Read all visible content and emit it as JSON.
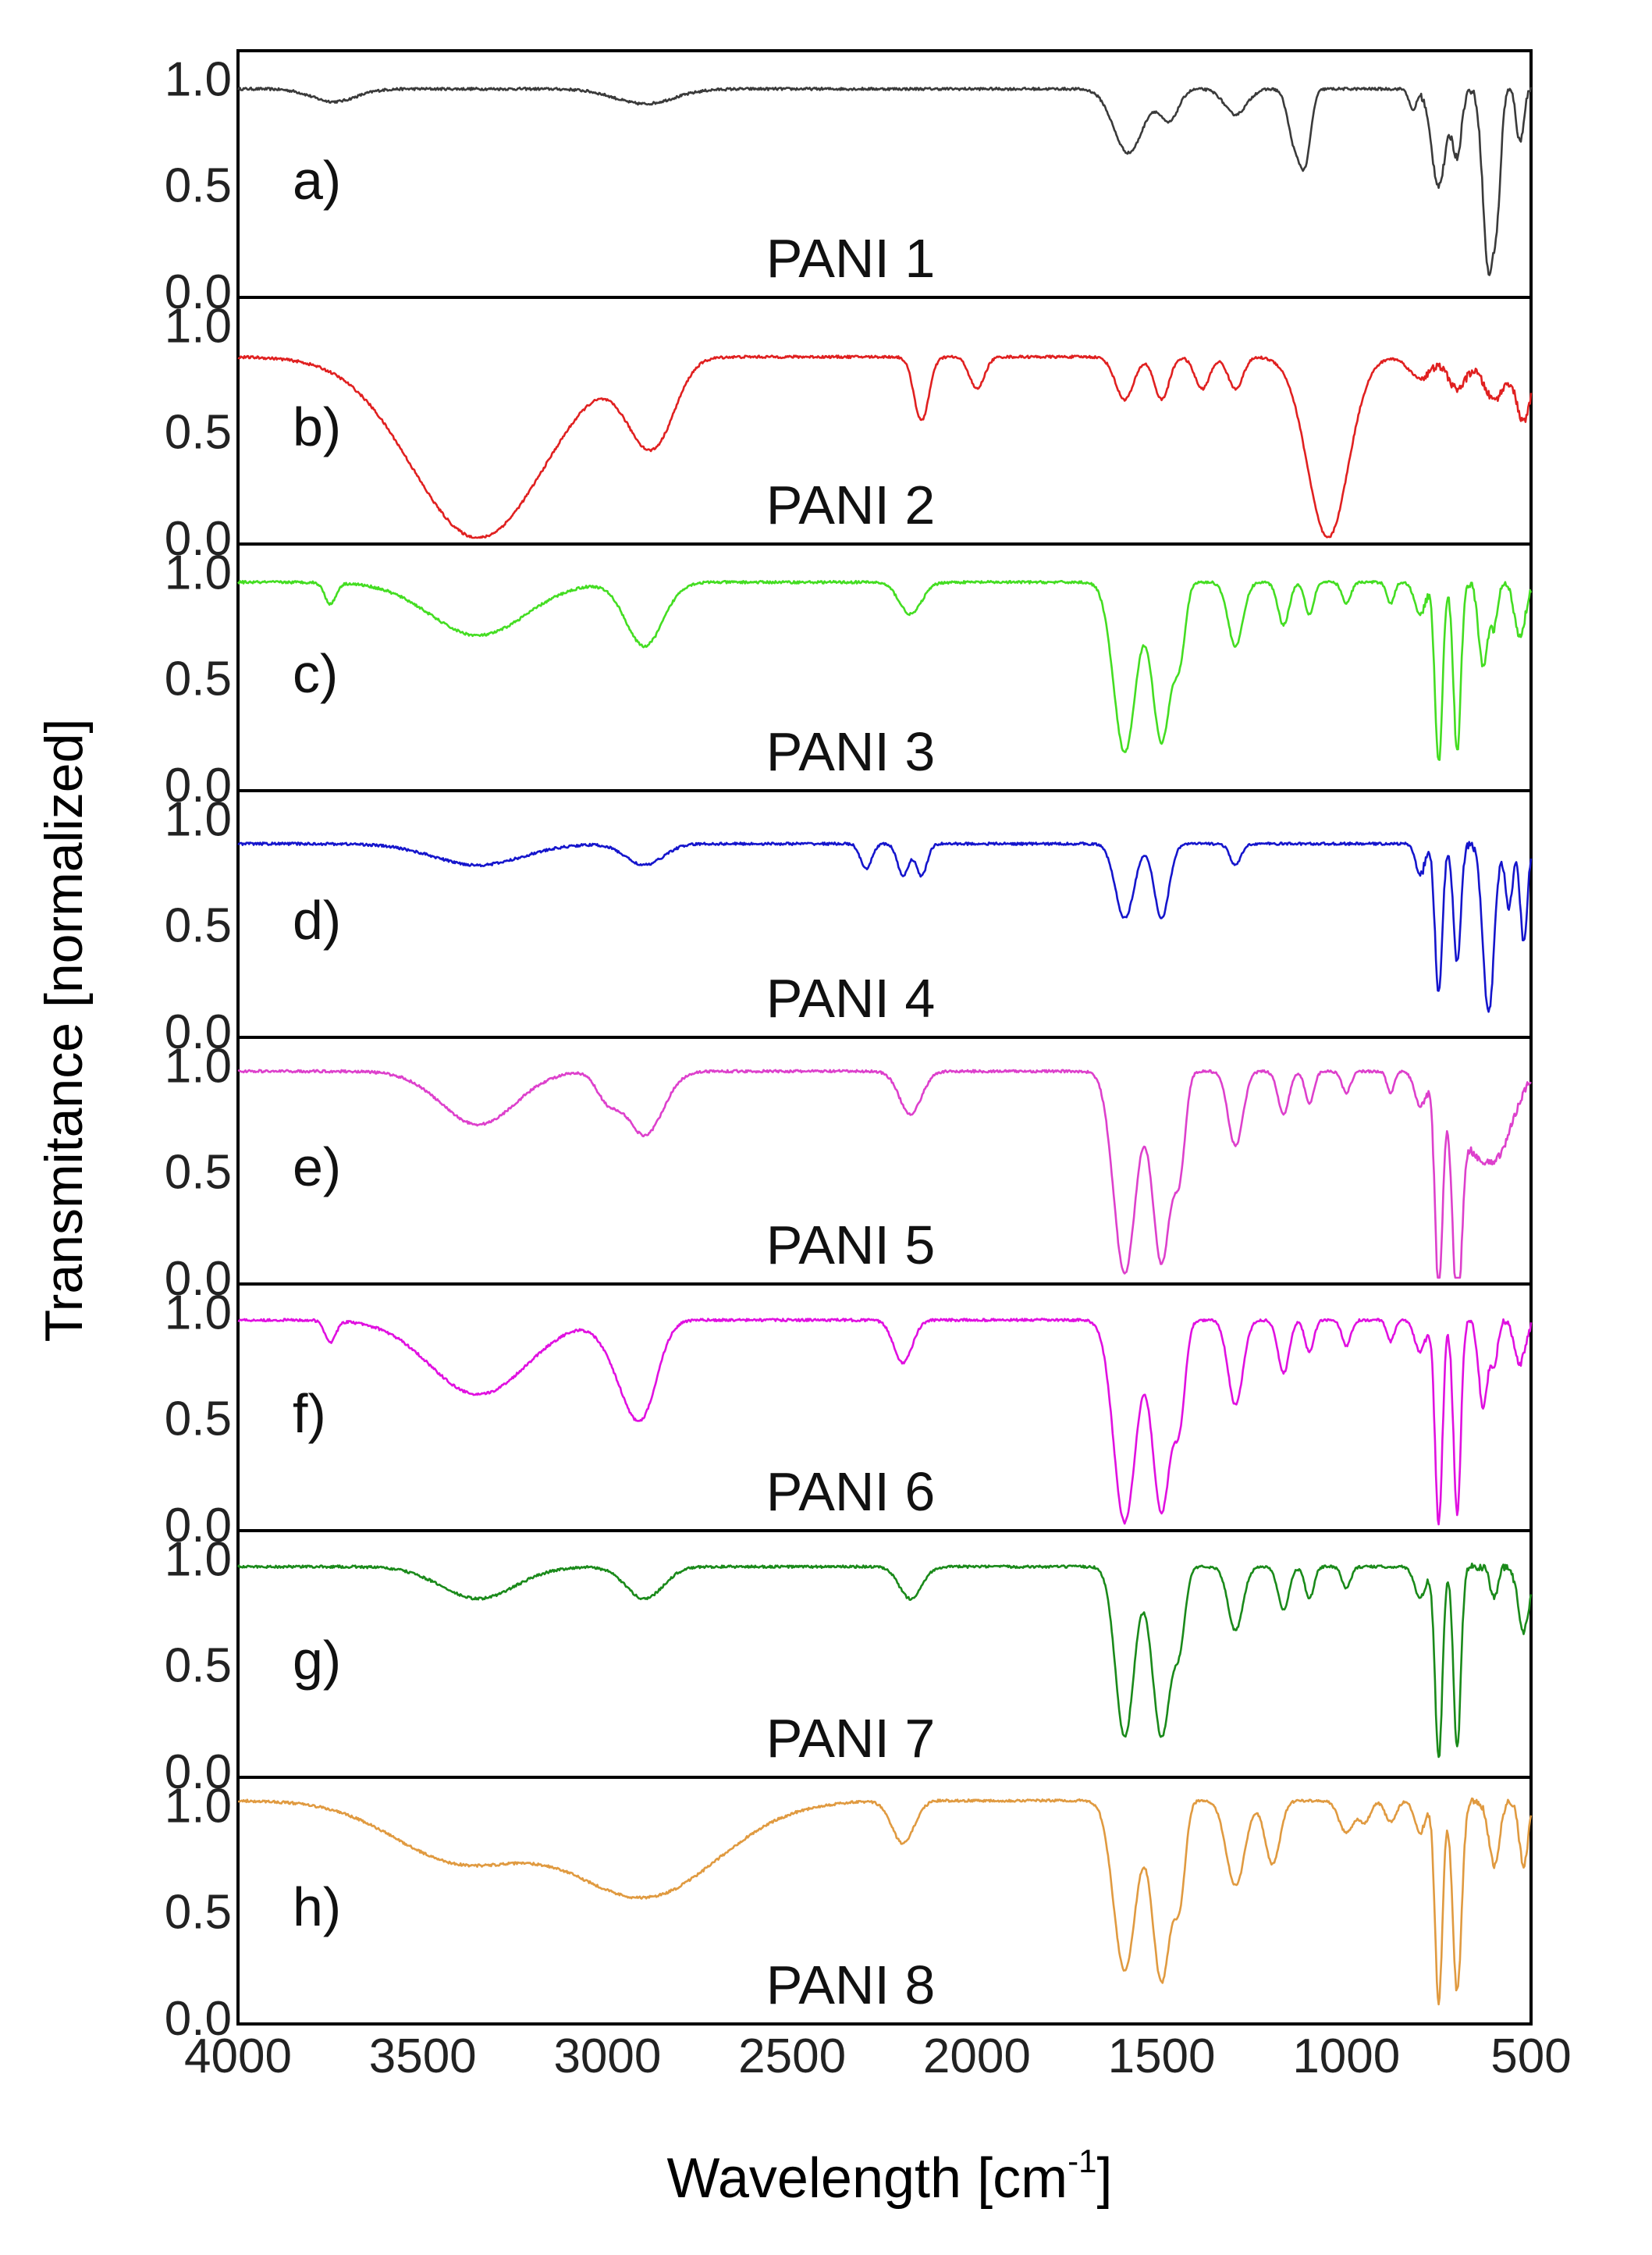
{
  "chart_data": {
    "type": "line",
    "xlabel_main": "Wavelength [cm",
    "xlabel_sup": "-1",
    "xlabel_close": "]",
    "ylabel": "Transmitance [normalized]",
    "xlim": [
      4000,
      500
    ],
    "ylim": [
      0.0,
      1.1
    ],
    "x_ticks": [
      {
        "value": 4000,
        "label": "4000"
      },
      {
        "value": 3500,
        "label": "3500"
      },
      {
        "value": 3000,
        "label": "3000"
      },
      {
        "value": 2500,
        "label": "2500"
      },
      {
        "value": 2000,
        "label": "2000"
      },
      {
        "value": 1500,
        "label": "1500"
      },
      {
        "value": 1000,
        "label": "1000"
      },
      {
        "value": 500,
        "label": "500"
      }
    ],
    "y_ticks": [
      {
        "value": 0.0,
        "label": "0.0"
      },
      {
        "value": 0.5,
        "label": "0.5"
      },
      {
        "value": 1.0,
        "label": "1.0"
      }
    ],
    "series": [
      {
        "letter": "a)",
        "name": "PANI 1",
        "color": "#3a3a3a",
        "base": 0.95,
        "bands": [
          [
            3740,
            60,
            0.06
          ],
          [
            2900,
            80,
            0.07
          ],
          [
            1590,
            40,
            0.3
          ],
          [
            1480,
            25,
            0.15
          ],
          [
            1300,
            30,
            0.12
          ],
          [
            1140,
            18,
            0.25
          ],
          [
            1110,
            15,
            0.3
          ],
          [
            820,
            10,
            0.1
          ],
          [
            750,
            20,
            0.45
          ],
          [
            700,
            12,
            0.3
          ],
          [
            615,
            15,
            0.85
          ],
          [
            590,
            10,
            0.4
          ],
          [
            530,
            10,
            0.25
          ]
        ]
      },
      {
        "letter": "b)",
        "name": "PANI 2",
        "color": "#e02020",
        "base": 0.85,
        "bands": [
          [
            3350,
            180,
            0.85
          ],
          [
            2900,
            60,
            0.3
          ],
          [
            2850,
            50,
            0.15
          ],
          [
            2150,
            20,
            0.3
          ],
          [
            2000,
            20,
            0.15
          ],
          [
            1600,
            25,
            0.2
          ],
          [
            1500,
            20,
            0.2
          ],
          [
            1390,
            20,
            0.15
          ],
          [
            1300,
            20,
            0.15
          ],
          [
            1050,
            55,
            0.85
          ],
          [
            800,
            30,
            0.1
          ],
          [
            700,
            25,
            0.15
          ],
          [
            600,
            30,
            0.2
          ],
          [
            520,
            20,
            0.3
          ]
        ]
      },
      {
        "letter": "c)",
        "name": "PANI 3",
        "color": "#44dd22",
        "base": 0.95,
        "bands": [
          [
            3750,
            15,
            0.1
          ],
          [
            3350,
            130,
            0.25
          ],
          [
            2900,
            50,
            0.3
          ],
          [
            2180,
            30,
            0.15
          ],
          [
            1600,
            30,
            0.8
          ],
          [
            1500,
            25,
            0.75
          ],
          [
            1450,
            15,
            0.3
          ],
          [
            1300,
            20,
            0.3
          ],
          [
            1170,
            15,
            0.2
          ],
          [
            1100,
            12,
            0.15
          ],
          [
            1000,
            12,
            0.1
          ],
          [
            880,
            10,
            0.1
          ],
          [
            800,
            15,
            0.15
          ],
          [
            750,
            10,
            0.85
          ],
          [
            700,
            10,
            0.8
          ],
          [
            630,
            12,
            0.4
          ],
          [
            600,
            10,
            0.2
          ],
          [
            530,
            15,
            0.25
          ]
        ]
      },
      {
        "letter": "d)",
        "name": "PANI 4",
        "color": "#1515cc",
        "base": 0.88,
        "bands": [
          [
            3350,
            120,
            0.1
          ],
          [
            2900,
            50,
            0.1
          ],
          [
            2300,
            15,
            0.12
          ],
          [
            2200,
            15,
            0.15
          ],
          [
            2150,
            15,
            0.15
          ],
          [
            1600,
            25,
            0.35
          ],
          [
            1500,
            20,
            0.35
          ],
          [
            1300,
            15,
            0.1
          ],
          [
            800,
            12,
            0.15
          ],
          [
            750,
            10,
            0.7
          ],
          [
            700,
            10,
            0.55
          ],
          [
            615,
            15,
            0.8
          ],
          [
            560,
            10,
            0.3
          ],
          [
            520,
            10,
            0.45
          ]
        ]
      },
      {
        "letter": "e)",
        "name": "PANI 5",
        "color": "#dd40cc",
        "base": 0.97,
        "bands": [
          [
            3350,
            100,
            0.25
          ],
          [
            3000,
            30,
            0.12
          ],
          [
            2900,
            50,
            0.3
          ],
          [
            2180,
            30,
            0.2
          ],
          [
            1600,
            30,
            0.95
          ],
          [
            1500,
            25,
            0.9
          ],
          [
            1450,
            15,
            0.4
          ],
          [
            1300,
            20,
            0.35
          ],
          [
            1170,
            15,
            0.2
          ],
          [
            1100,
            12,
            0.15
          ],
          [
            1000,
            12,
            0.1
          ],
          [
            880,
            10,
            0.1
          ],
          [
            800,
            15,
            0.15
          ],
          [
            750,
            10,
            0.95
          ],
          [
            700,
            12,
            0.9
          ],
          [
            650,
            60,
            0.35
          ],
          [
            580,
            40,
            0.2
          ]
        ]
      },
      {
        "letter": "f)",
        "name": "PANI 6",
        "color": "#e010e0",
        "base": 0.96,
        "bands": [
          [
            3750,
            15,
            0.1
          ],
          [
            3350,
            130,
            0.35
          ],
          [
            2950,
            50,
            0.25
          ],
          [
            2900,
            40,
            0.3
          ],
          [
            2200,
            25,
            0.2
          ],
          [
            1600,
            30,
            0.95
          ],
          [
            1500,
            25,
            0.9
          ],
          [
            1450,
            15,
            0.4
          ],
          [
            1300,
            20,
            0.4
          ],
          [
            1170,
            15,
            0.25
          ],
          [
            1100,
            12,
            0.15
          ],
          [
            1000,
            12,
            0.12
          ],
          [
            880,
            10,
            0.1
          ],
          [
            800,
            15,
            0.15
          ],
          [
            750,
            10,
            0.95
          ],
          [
            700,
            10,
            0.9
          ],
          [
            630,
            12,
            0.4
          ],
          [
            600,
            10,
            0.2
          ],
          [
            530,
            15,
            0.2
          ]
        ]
      },
      {
        "letter": "g)",
        "name": "PANI 7",
        "color": "#1a8a1a",
        "base": 0.96,
        "bands": [
          [
            3350,
            100,
            0.15
          ],
          [
            2900,
            50,
            0.15
          ],
          [
            2180,
            30,
            0.15
          ],
          [
            1600,
            25,
            0.8
          ],
          [
            1500,
            25,
            0.8
          ],
          [
            1450,
            15,
            0.3
          ],
          [
            1300,
            20,
            0.3
          ],
          [
            1170,
            15,
            0.2
          ],
          [
            1100,
            12,
            0.15
          ],
          [
            1000,
            12,
            0.1
          ],
          [
            800,
            15,
            0.15
          ],
          [
            750,
            10,
            0.9
          ],
          [
            700,
            10,
            0.85
          ],
          [
            600,
            10,
            0.15
          ],
          [
            520,
            15,
            0.3
          ]
        ]
      },
      {
        "letter": "h)",
        "name": "PANI 8",
        "color": "#e09a40",
        "base": 1.02,
        "bands": [
          [
            3400,
            180,
            0.28
          ],
          [
            2900,
            200,
            0.45
          ],
          [
            2200,
            30,
            0.2
          ],
          [
            1600,
            30,
            0.8
          ],
          [
            1500,
            25,
            0.85
          ],
          [
            1450,
            15,
            0.4
          ],
          [
            1300,
            25,
            0.4
          ],
          [
            1200,
            20,
            0.3
          ],
          [
            1000,
            20,
            0.15
          ],
          [
            950,
            15,
            0.1
          ],
          [
            880,
            15,
            0.1
          ],
          [
            800,
            15,
            0.15
          ],
          [
            750,
            10,
            0.95
          ],
          [
            700,
            12,
            0.9
          ],
          [
            600,
            15,
            0.3
          ],
          [
            520,
            12,
            0.3
          ]
        ]
      }
    ]
  }
}
